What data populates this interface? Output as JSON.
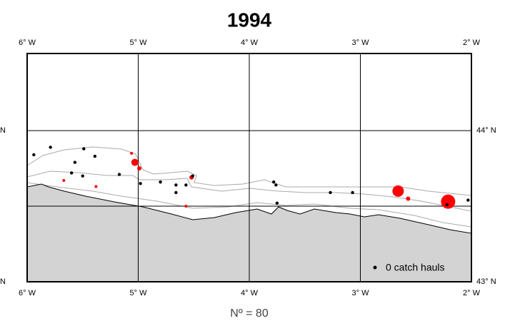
{
  "title": "1994",
  "map": {
    "xlim": [
      -6,
      -2
    ],
    "ylim": [
      43,
      44.51
    ],
    "xticks": [
      {
        "value": -6,
        "label": "6° W"
      },
      {
        "value": -5,
        "label": "5° W"
      },
      {
        "value": -4,
        "label": "4° W"
      },
      {
        "value": -3,
        "label": "3° W"
      },
      {
        "value": -2,
        "label": "2° W"
      }
    ],
    "yticks": [
      {
        "value": 43,
        "label": "43° N"
      },
      {
        "value": 44,
        "label": "44° N"
      }
    ],
    "extra_grid_lat": 43.5,
    "zero_catch_color": "#000000",
    "catch_color": "#ff0000",
    "zero_catch": [
      {
        "lon": -5.94,
        "lat": 43.84
      },
      {
        "lon": -5.79,
        "lat": 43.89
      },
      {
        "lon": -5.49,
        "lat": 43.88
      },
      {
        "lon": -5.39,
        "lat": 43.83
      },
      {
        "lon": -5.57,
        "lat": 43.79
      },
      {
        "lon": -5.6,
        "lat": 43.72
      },
      {
        "lon": -5.5,
        "lat": 43.7
      },
      {
        "lon": -5.17,
        "lat": 43.71
      },
      {
        "lon": -4.98,
        "lat": 43.65
      },
      {
        "lon": -4.8,
        "lat": 43.66
      },
      {
        "lon": -4.66,
        "lat": 43.64
      },
      {
        "lon": -4.66,
        "lat": 43.59
      },
      {
        "lon": -4.57,
        "lat": 43.64
      },
      {
        "lon": -4.51,
        "lat": 43.7
      },
      {
        "lon": -3.78,
        "lat": 43.66
      },
      {
        "lon": -3.76,
        "lat": 43.64
      },
      {
        "lon": -3.75,
        "lat": 43.52
      },
      {
        "lon": -3.27,
        "lat": 43.59
      },
      {
        "lon": -3.07,
        "lat": 43.59
      },
      {
        "lon": -2.22,
        "lat": 43.51
      },
      {
        "lon": -2.03,
        "lat": 43.54
      }
    ],
    "catch": [
      {
        "lon": -5.06,
        "lat": 43.85,
        "size": 2
      },
      {
        "lon": -5.03,
        "lat": 43.79,
        "size": 5
      },
      {
        "lon": -4.99,
        "lat": 43.75,
        "size": 3
      },
      {
        "lon": -5.67,
        "lat": 43.67,
        "size": 2
      },
      {
        "lon": -5.38,
        "lat": 43.63,
        "size": 2
      },
      {
        "lon": -4.52,
        "lat": 43.69,
        "size": 3
      },
      {
        "lon": -4.57,
        "lat": 43.5,
        "size": 2
      },
      {
        "lon": -2.66,
        "lat": 43.6,
        "size": 8
      },
      {
        "lon": -2.57,
        "lat": 43.55,
        "size": 3
      },
      {
        "lon": -2.21,
        "lat": 43.53,
        "size": 10
      }
    ]
  },
  "legend": "0 catch hauls",
  "footer": "Nº = 80"
}
